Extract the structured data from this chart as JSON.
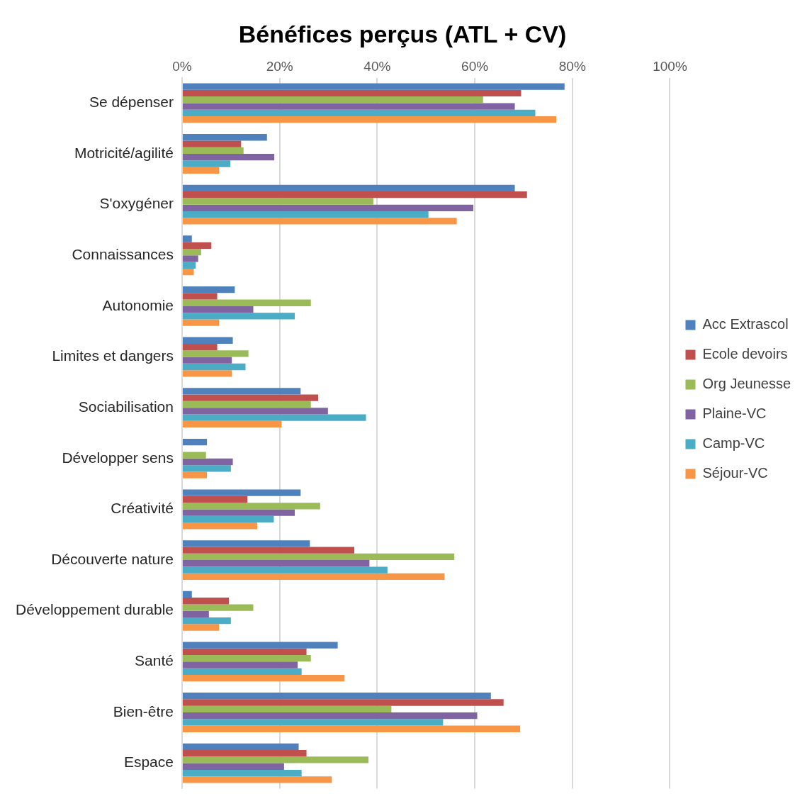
{
  "chart_data": {
    "type": "bar",
    "orientation": "horizontal",
    "title": "Bénéfices perçus (ATL + CV)",
    "categories": [
      "Se dépenser",
      "Motricité/agilité",
      "S'oxygéner",
      "Connaissances",
      "Autonomie",
      "Limites et dangers",
      "Sociabilisation",
      "Développer sens",
      "Créativité",
      "Découverte nature",
      "Développement durable",
      "Santé",
      "Bien-être",
      "Espace"
    ],
    "series": [
      {
        "name": "Acc Extrascol",
        "color": "#4f81bd",
        "values": [
          78.4,
          17.4,
          68.2,
          2.0,
          10.8,
          10.4,
          24.3,
          5.1,
          24.3,
          26.2,
          2.0,
          31.9,
          63.3,
          23.9
        ]
      },
      {
        "name": "Ecole devoirs",
        "color": "#c0504d",
        "values": [
          69.5,
          12.1,
          70.7,
          6.0,
          7.2,
          7.2,
          27.9,
          0,
          13.4,
          35.3,
          9.6,
          25.5,
          65.9,
          25.5
        ]
      },
      {
        "name": "Org Jeunesse",
        "color": "#9bbb59",
        "values": [
          61.7,
          12.6,
          39.2,
          3.9,
          26.4,
          13.6,
          26.4,
          4.9,
          28.3,
          55.8,
          14.6,
          26.4,
          42.9,
          38.2
        ]
      },
      {
        "name": "Plaine-VC",
        "color": "#8064a2",
        "values": [
          68.2,
          18.9,
          59.7,
          3.3,
          14.6,
          10.2,
          29.9,
          10.4,
          23.1,
          38.4,
          5.5,
          23.7,
          60.5,
          20.9
        ]
      },
      {
        "name": "Camp-VC",
        "color": "#4bacc6",
        "values": [
          72.4,
          9.9,
          50.5,
          2.8,
          23.1,
          13.0,
          37.7,
          10.0,
          18.8,
          42.1,
          10.0,
          24.5,
          53.5,
          24.5
        ]
      },
      {
        "name": "Séjour-VC",
        "color": "#f79646",
        "values": [
          76.7,
          7.6,
          56.3,
          2.4,
          7.6,
          10.2,
          20.4,
          5.1,
          15.4,
          53.8,
          7.6,
          33.3,
          69.3,
          30.7
        ]
      }
    ],
    "xlim": [
      0,
      100
    ],
    "xticks": [
      {
        "value": 0,
        "label": "0%"
      },
      {
        "value": 20,
        "label": "20%"
      },
      {
        "value": 40,
        "label": "40%"
      },
      {
        "value": 60,
        "label": "60%"
      },
      {
        "value": 80,
        "label": "80%"
      },
      {
        "value": 100,
        "label": "100%"
      }
    ],
    "grid": "x",
    "legend": "right"
  }
}
